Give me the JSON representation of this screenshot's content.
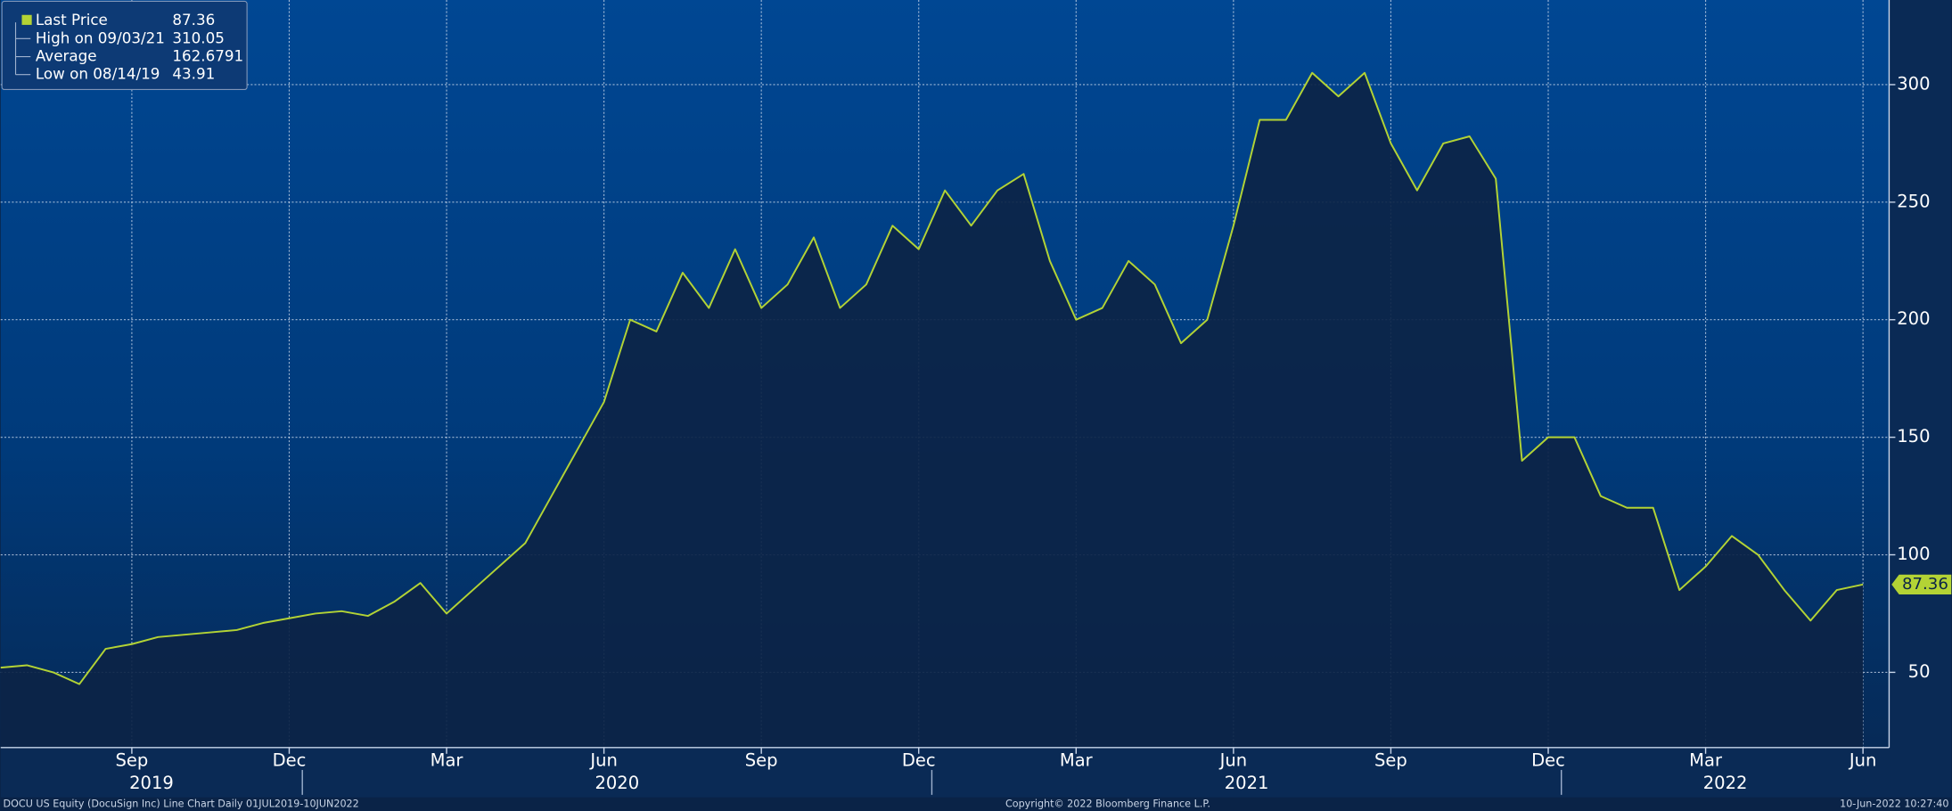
{
  "chart_data": {
    "type": "area",
    "series": [
      {
        "name": "Last Price",
        "color": "#b3d335",
        "values": [
          52,
          53,
          50,
          45,
          60,
          62,
          65,
          66,
          67,
          68,
          71,
          73,
          75,
          76,
          74,
          80,
          88,
          75,
          85,
          95,
          105,
          125,
          145,
          165,
          200,
          195,
          220,
          205,
          230,
          205,
          215,
          235,
          205,
          215,
          240,
          230,
          255,
          240,
          255,
          262,
          225,
          200,
          205,
          225,
          215,
          190,
          200,
          240,
          285,
          285,
          305,
          295,
          305,
          275,
          255,
          275,
          278,
          260,
          140,
          150,
          150,
          125,
          120,
          120,
          85,
          95,
          108,
          100,
          85,
          72,
          85,
          87.36
        ]
      }
    ],
    "categories": [
      null,
      null,
      null,
      null,
      null,
      "Sep",
      null,
      null,
      null,
      null,
      null,
      "Dec",
      null,
      null,
      null,
      null,
      null,
      "Mar",
      null,
      null,
      null,
      null,
      null,
      "Jun",
      null,
      null,
      null,
      null,
      null,
      "Sep",
      null,
      null,
      null,
      null,
      null,
      "Dec",
      null,
      null,
      null,
      null,
      null,
      "Mar",
      null,
      null,
      null,
      null,
      null,
      "Jun",
      null,
      null,
      null,
      null,
      null,
      "Sep",
      null,
      null,
      null,
      null,
      null,
      "Dec",
      null,
      null,
      null,
      null,
      null,
      "Mar",
      null,
      null,
      null,
      null,
      null,
      "Jun"
    ],
    "year_labels": [
      "2019",
      "2020",
      "2021",
      "2022"
    ],
    "ylim": [
      18,
      336
    ],
    "yticks": [
      50,
      100,
      150,
      200,
      250,
      300
    ],
    "grid": true,
    "last_price": 87.36,
    "stats": [
      {
        "label": "High on 09/03/21",
        "value": 310.05
      },
      {
        "label": "Average",
        "value": 162.6791
      },
      {
        "label": "Low on 08/14/19",
        "value": 43.91
      }
    ],
    "footer_left": "DOCU US Equity (DocuSign Inc) Line Chart  Daily 01JUL2019-10JUN2022",
    "footer_center": "Copyright© 2022 Bloomberg Finance L.P.",
    "footer_right": "10-Jun-2022 10:27:40"
  }
}
